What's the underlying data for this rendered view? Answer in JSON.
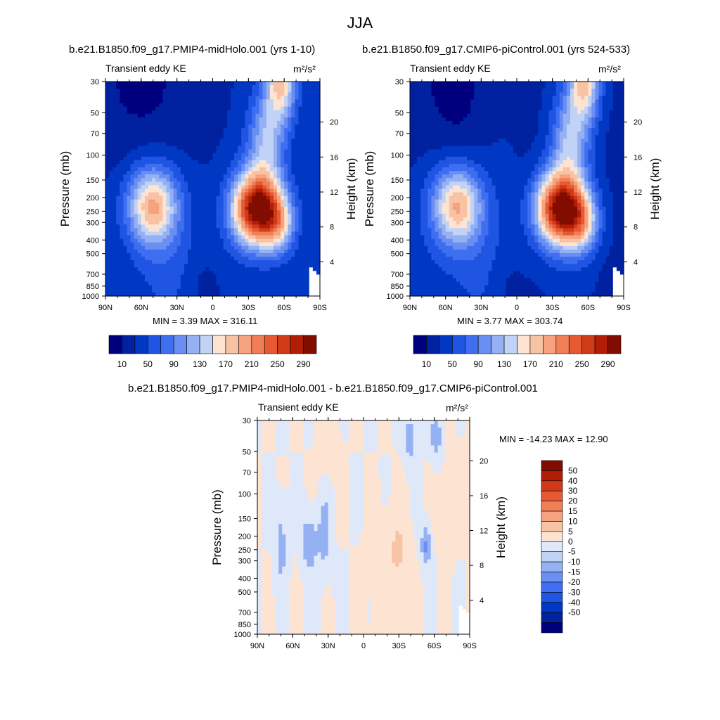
{
  "title": "JJA",
  "panels": [
    {
      "case": "b.e21.B1850.f09_g17.PMIP4-midHolo.001 (yrs 1-10)",
      "field": "Transient eddy KE",
      "units": "m²/s²",
      "min_max": "MIN =   3.39  MAX = 316.11"
    },
    {
      "case": "b.e21.B1850.f09_g17.CMIP6-piControl.001 (yrs 524-533)",
      "field": "Transient eddy KE",
      "units": "m²/s²",
      "min_max": "MIN =   3.77  MAX = 303.74"
    },
    {
      "case": "b.e21.B1850.f09_g17.PMIP4-midHolo.001 - b.e21.B1850.f09_g17.CMIP6-piControl.001",
      "field": "Transient eddy KE",
      "units": "m²/s²",
      "min_max": "MIN = -14.23  MAX =  12.90"
    }
  ],
  "axes": {
    "ylabel": "Pressure (mb)",
    "y2label": "Height (km)"
  },
  "chart_data": [
    {
      "type": "heatmap",
      "title": "Transient eddy KE",
      "xlabel": "",
      "ylabel": "Pressure (mb)",
      "x_ticks": [
        "90N",
        "60N",
        "30N",
        "0",
        "30S",
        "60S",
        "90S"
      ],
      "y_ticks": [
        30,
        50,
        70,
        100,
        150,
        200,
        250,
        300,
        400,
        500,
        700,
        850,
        1000
      ],
      "y_scale": "log",
      "y2_ticks": [
        4,
        8,
        12,
        16,
        20
      ],
      "xlim": [
        90,
        -90
      ],
      "ylim": [
        1000,
        30
      ],
      "colorbar_labels": [
        10,
        50,
        90,
        130,
        170,
        210,
        250,
        290
      ],
      "colorbar_bins": 16,
      "min": 3.39,
      "max": 316.11,
      "features": [
        {
          "lat": 51,
          "p": 230,
          "value": 190
        },
        {
          "lat": -30,
          "p": 230,
          "value": 300
        },
        {
          "lat": -50,
          "p": 290,
          "value": 280
        },
        {
          "lat": -58,
          "p": 32,
          "value": 160
        }
      ]
    },
    {
      "type": "heatmap",
      "title": "Transient eddy KE",
      "xlabel": "",
      "ylabel": "Pressure (mb)",
      "x_ticks": [
        "90N",
        "60N",
        "30N",
        "0",
        "30S",
        "60S",
        "90S"
      ],
      "y_ticks": [
        30,
        50,
        70,
        100,
        150,
        200,
        250,
        300,
        400,
        500,
        700,
        850,
        1000
      ],
      "y_scale": "log",
      "y2_ticks": [
        4,
        8,
        12,
        16,
        20
      ],
      "xlim": [
        90,
        -90
      ],
      "ylim": [
        1000,
        30
      ],
      "colorbar_labels": [
        10,
        50,
        90,
        130,
        170,
        210,
        250,
        290
      ],
      "colorbar_bins": 16,
      "min": 3.77,
      "max": 303.74,
      "features": [
        {
          "lat": 51,
          "p": 230,
          "value": 185
        },
        {
          "lat": -30,
          "p": 230,
          "value": 295
        },
        {
          "lat": -50,
          "p": 290,
          "value": 275
        },
        {
          "lat": -58,
          "p": 32,
          "value": 160
        }
      ]
    },
    {
      "type": "heatmap",
      "title": "Transient eddy KE",
      "xlabel": "",
      "ylabel": "Pressure (mb)",
      "x_ticks": [
        "90N",
        "60N",
        "30N",
        "0",
        "30S",
        "60S",
        "90S"
      ],
      "y_ticks": [
        30,
        50,
        70,
        100,
        150,
        200,
        250,
        300,
        400,
        500,
        700,
        850,
        1000
      ],
      "y_scale": "log",
      "y2_ticks": [
        4,
        8,
        12,
        16,
        20
      ],
      "xlim": [
        90,
        -90
      ],
      "ylim": [
        1000,
        30
      ],
      "colorbar_labels": [
        50,
        40,
        30,
        20,
        15,
        10,
        5,
        0,
        -5,
        -10,
        -15,
        -20,
        -30,
        -40,
        -50
      ],
      "min": -14.23,
      "max": 12.9,
      "features": [
        {
          "lat": 46,
          "p": 230,
          "value": -14
        },
        {
          "lat": -30,
          "p": 250,
          "value": 12
        },
        {
          "lat": -53,
          "p": 220,
          "value": -13
        }
      ]
    }
  ],
  "colors": {
    "seq": [
      "#00007f",
      "#0021a0",
      "#0038c4",
      "#1f55e2",
      "#3f6ff0",
      "#6a8ff2",
      "#95b1f3",
      "#c0d2f6",
      "#fde4d2",
      "#f8c3a4",
      "#f6a27e",
      "#f07e57",
      "#e65a32",
      "#d13a17",
      "#b11d07",
      "#820c00"
    ],
    "diverging": [
      "#00007f",
      "#0021a0",
      "#0038c4",
      "#1f55e2",
      "#3f6ff0",
      "#6a8ff2",
      "#95b1f3",
      "#c0d2f6",
      "#dfe8f9",
      "#fde4d2",
      "#f8c3a4",
      "#f6a27e",
      "#f07e57",
      "#e65a32",
      "#d13a17",
      "#b11d07",
      "#820c00"
    ]
  }
}
